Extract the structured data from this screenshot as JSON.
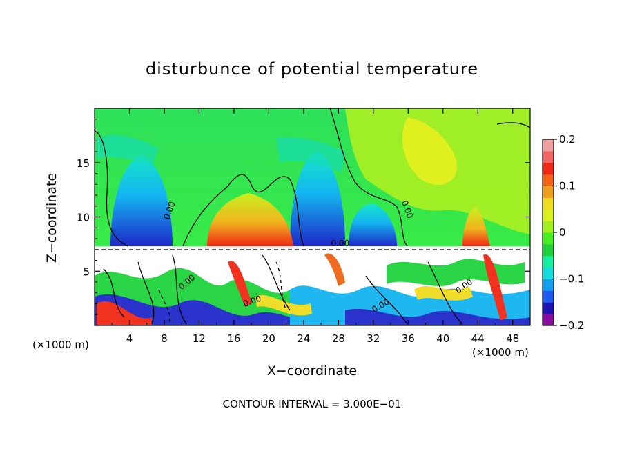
{
  "chart_data": {
    "type": "heatmap",
    "title": "disturbunce of potential temperature",
    "xlabel": "X−coordinate",
    "ylabel": "Z−coordinate",
    "x_unit_label": "(×1000 m)",
    "xlim": [
      0,
      50
    ],
    "ylim": [
      0,
      20
    ],
    "x_ticks": [
      4,
      8,
      12,
      16,
      20,
      24,
      28,
      32,
      36,
      40,
      44,
      48
    ],
    "x_tick_labels": [
      "4",
      "8",
      "12",
      "16",
      "20",
      "24",
      "28",
      "32",
      "36",
      "40",
      "44",
      "48"
    ],
    "y_ticks": [
      5,
      10,
      15
    ],
    "y_tick_labels": [
      "5",
      "10",
      "15"
    ],
    "colorbar": {
      "range": [
        -0.2,
        0.2
      ],
      "tick_values": [
        0.2,
        0.1,
        0,
        -0.1,
        -0.2
      ],
      "tick_labels": [
        "0.2",
        "0.1",
        "0",
        "−0.1",
        "−0.2"
      ],
      "colors": [
        "#8a0aa0",
        "#1e14b4",
        "#1e5af0",
        "#14a0f0",
        "#14dcdc",
        "#14f0a0",
        "#1ed23c",
        "#46f01e",
        "#a0f01e",
        "#dcf01e",
        "#f0dc1e",
        "#f0a01e",
        "#f06414",
        "#f02814",
        "#f06464",
        "#f0a0a0"
      ]
    },
    "contour_labels": [
      "0.00"
    ],
    "grid": false,
    "footer": "CONTOUR INTERVAL = 3.000E−01"
  }
}
